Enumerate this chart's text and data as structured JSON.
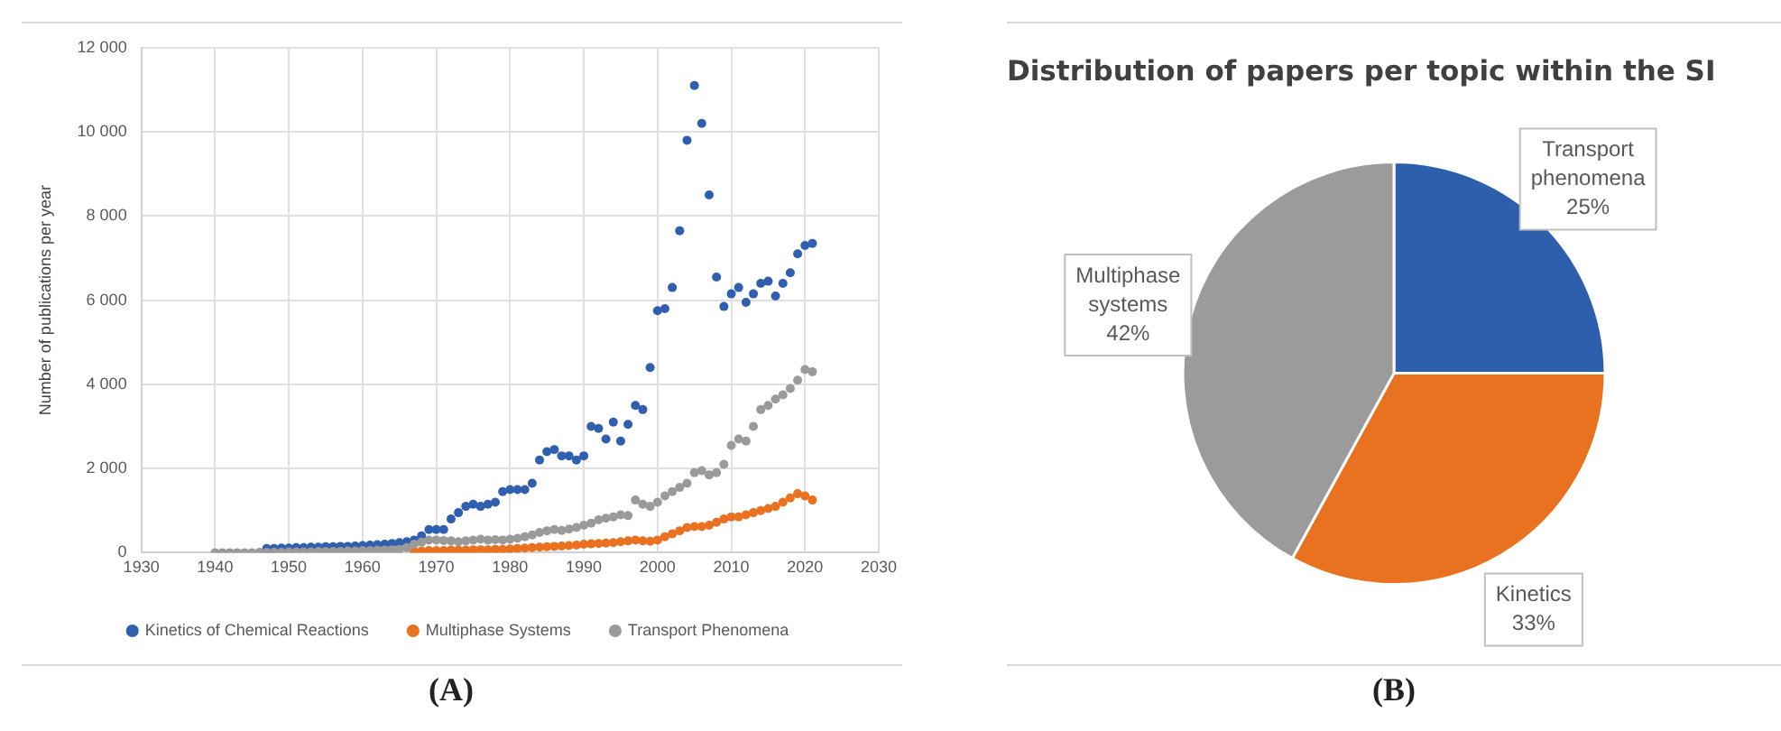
{
  "chart_data": [
    {
      "type": "scatter",
      "ylabel": "Number of publications per year",
      "xlim": [
        1930,
        2030
      ],
      "xticks": [
        1930,
        1940,
        1950,
        1960,
        1970,
        1980,
        1990,
        2000,
        2010,
        2020,
        2030
      ],
      "ylim": [
        0,
        12000
      ],
      "yticks": [
        0,
        {
          "value": 2000,
          "label": "2 000"
        },
        {
          "value": 4000,
          "label": "4 000"
        },
        {
          "value": 6000,
          "label": "6 000"
        },
        {
          "value": 8000,
          "label": "8 000"
        },
        {
          "value": 10000,
          "label": "10 000"
        },
        {
          "value": 12000,
          "label": "12 000"
        }
      ],
      "grid": true,
      "legend": "bottom",
      "marker": "circle",
      "annotations": [
        "(A)"
      ],
      "series": [
        {
          "name": "Kinetics of Chemical Reactions",
          "color": "#2f5fae",
          "x": [
            1947,
            1948,
            1949,
            1950,
            1951,
            1952,
            1953,
            1954,
            1955,
            1956,
            1957,
            1958,
            1959,
            1960,
            1961,
            1962,
            1963,
            1964,
            1965,
            1966,
            1967,
            1968,
            1969,
            1970,
            1971,
            1972,
            1973,
            1974,
            1975,
            1976,
            1977,
            1978,
            1979,
            1980,
            1981,
            1982,
            1983,
            1984,
            1985,
            1986,
            1987,
            1988,
            1989,
            1990,
            1991,
            1992,
            1993,
            1994,
            1995,
            1996,
            1997,
            1998,
            1999,
            2000,
            2001,
            2002,
            2003,
            2004,
            2005,
            2006,
            2007,
            2008,
            2009,
            2010,
            2011,
            2012,
            2013,
            2014,
            2015,
            2016,
            2017,
            2018,
            2019,
            2020,
            2021
          ],
          "values": [
            100,
            100,
            110,
            110,
            120,
            120,
            130,
            130,
            140,
            140,
            150,
            150,
            160,
            170,
            180,
            190,
            200,
            220,
            240,
            260,
            300,
            400,
            550,
            550,
            550,
            800,
            950,
            1100,
            1150,
            1100,
            1150,
            1200,
            1450,
            1500,
            1500,
            1500,
            1650,
            2200,
            2400,
            2450,
            2300,
            2300,
            2200,
            2300,
            3000,
            2950,
            2700,
            3100,
            2650,
            3050,
            3500,
            3400,
            4400,
            5750,
            5800,
            6300,
            7650,
            9800,
            11100,
            10200,
            8500,
            6550,
            5850,
            6150,
            6300,
            5950,
            6150,
            6400,
            6450,
            6100,
            6400,
            6650,
            7100,
            7300,
            7350
          ]
        },
        {
          "name": "Multiphase Systems",
          "color": "#e9711f",
          "x": [
            1967,
            1968,
            1969,
            1970,
            1971,
            1972,
            1973,
            1974,
            1975,
            1976,
            1977,
            1978,
            1979,
            1980,
            1981,
            1982,
            1983,
            1984,
            1985,
            1986,
            1987,
            1988,
            1989,
            1990,
            1991,
            1992,
            1993,
            1994,
            1995,
            1996,
            1997,
            1998,
            1999,
            2000,
            2001,
            2002,
            2003,
            2004,
            2005,
            2006,
            2007,
            2008,
            2009,
            2010,
            2011,
            2012,
            2013,
            2014,
            2015,
            2016,
            2017,
            2018,
            2019,
            2020,
            2021
          ],
          "values": [
            30,
            40,
            50,
            50,
            50,
            60,
            60,
            60,
            70,
            70,
            70,
            80,
            80,
            90,
            100,
            110,
            120,
            130,
            140,
            150,
            160,
            170,
            180,
            200,
            210,
            220,
            230,
            240,
            260,
            280,
            300,
            280,
            270,
            300,
            380,
            450,
            520,
            600,
            620,
            620,
            650,
            720,
            800,
            850,
            850,
            900,
            950,
            1000,
            1050,
            1100,
            1200,
            1300,
            1400,
            1350,
            1250
          ]
        },
        {
          "name": "Transport Phenomena",
          "color": "#9a9a9a",
          "x": [
            1940,
            1941,
            1942,
            1943,
            1944,
            1945,
            1946,
            1947,
            1948,
            1949,
            1950,
            1951,
            1952,
            1953,
            1954,
            1955,
            1956,
            1957,
            1958,
            1959,
            1960,
            1961,
            1962,
            1963,
            1964,
            1965,
            1966,
            1967,
            1968,
            1969,
            1970,
            1971,
            1972,
            1973,
            1974,
            1975,
            1976,
            1977,
            1978,
            1979,
            1980,
            1981,
            1982,
            1983,
            1984,
            1985,
            1986,
            1987,
            1988,
            1989,
            1990,
            1991,
            1992,
            1993,
            1994,
            1995,
            1996,
            1997,
            1998,
            1999,
            2000,
            2001,
            2002,
            2003,
            2004,
            2005,
            2006,
            2007,
            2008,
            2009,
            2010,
            2011,
            2012,
            2013,
            2014,
            2015,
            2016,
            2017,
            2018,
            2019,
            2020,
            2021
          ],
          "values": [
            0,
            0,
            0,
            0,
            0,
            0,
            10,
            10,
            10,
            10,
            20,
            20,
            20,
            20,
            30,
            30,
            30,
            30,
            40,
            40,
            50,
            50,
            60,
            60,
            70,
            80,
            120,
            200,
            250,
            300,
            300,
            290,
            280,
            260,
            280,
            300,
            320,
            300,
            310,
            300,
            320,
            340,
            380,
            420,
            480,
            520,
            550,
            530,
            560,
            600,
            650,
            700,
            780,
            820,
            850,
            900,
            880,
            1250,
            1150,
            1100,
            1200,
            1350,
            1450,
            1550,
            1650,
            1900,
            1950,
            1850,
            1900,
            2100,
            2550,
            2700,
            2650,
            3000,
            3400,
            3500,
            3650,
            3750,
            3900,
            4100,
            4350,
            4300
          ]
        }
      ]
    },
    {
      "type": "pie",
      "title": "Distribution of papers per topic within the SI",
      "categories": [
        "Transport phenomena",
        "Kinetics",
        "Multiphase systems"
      ],
      "values": [
        25,
        33,
        42
      ],
      "colors": [
        "#2e5fad",
        "#e8721f",
        "#9b9b9b"
      ],
      "value_labels": [
        "25%",
        "33%",
        "42%"
      ],
      "annotations": [
        "(B)"
      ]
    }
  ]
}
